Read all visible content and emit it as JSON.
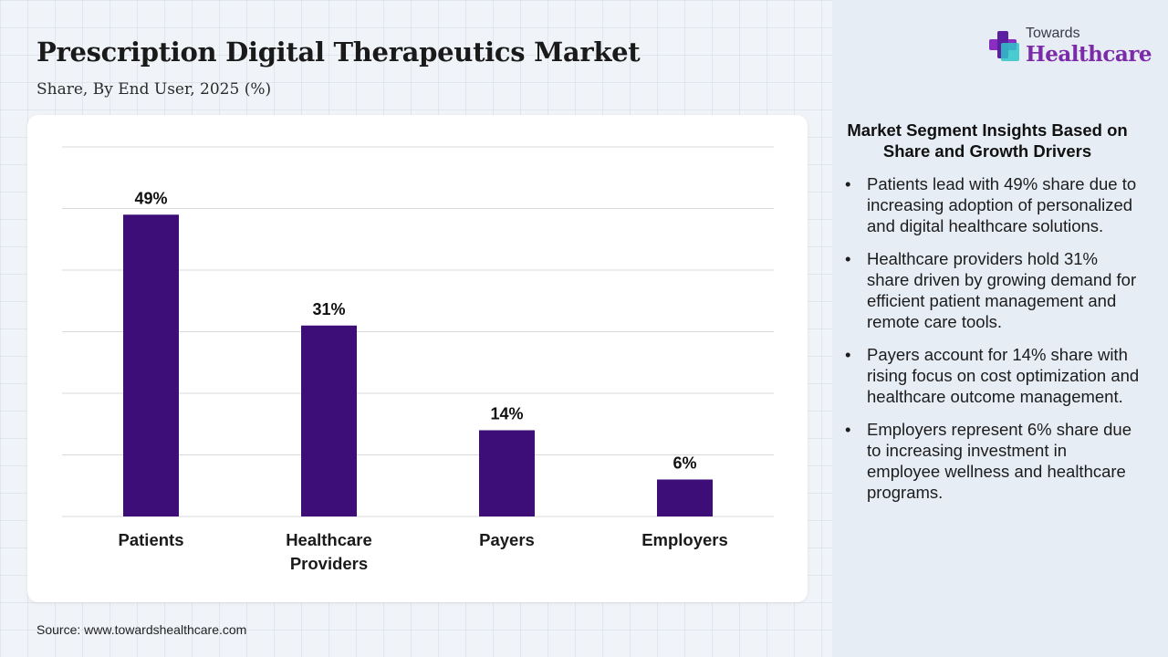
{
  "header": {
    "title": "Prescription Digital Therapeutics Market",
    "subtitle": "Share, By End User, 2025 (%)"
  },
  "logo": {
    "top_text": "Towards",
    "main_text": "Healthcare",
    "icon": "medical-cross-icon"
  },
  "chart_data": {
    "type": "bar",
    "title": "Prescription Digital Therapeutics Market",
    "subtitle": "Share, By End User, 2025 (%)",
    "categories": [
      "Patients",
      "Healthcare Providers",
      "Payers",
      "Employers"
    ],
    "category_lines": [
      [
        "Patients"
      ],
      [
        "Healthcare",
        "Providers"
      ],
      [
        "Payers"
      ],
      [
        "Employers"
      ]
    ],
    "values": [
      49,
      31,
      14,
      6
    ],
    "data_labels": [
      "49%",
      "31%",
      "14%",
      "6%"
    ],
    "xlabel": "",
    "ylabel": "",
    "ylim": [
      0,
      60
    ],
    "grid": true,
    "legend": "none",
    "bar_color": "#3d0e78"
  },
  "insights": {
    "heading": "Market Segment Insights Based on Share and Growth Drivers",
    "items": [
      "Patients lead with 49% share due to increasing adoption of personalized and digital healthcare solutions.",
      "Healthcare providers hold 31% share driven by growing demand for efficient patient management and remote care tools.",
      "Payers account for 14% share with rising focus on cost optimization and healthcare outcome management.",
      "Employers represent 6% share due to increasing investment in employee wellness and healthcare programs."
    ]
  },
  "source": "Source: www.towardshealthcare.com"
}
